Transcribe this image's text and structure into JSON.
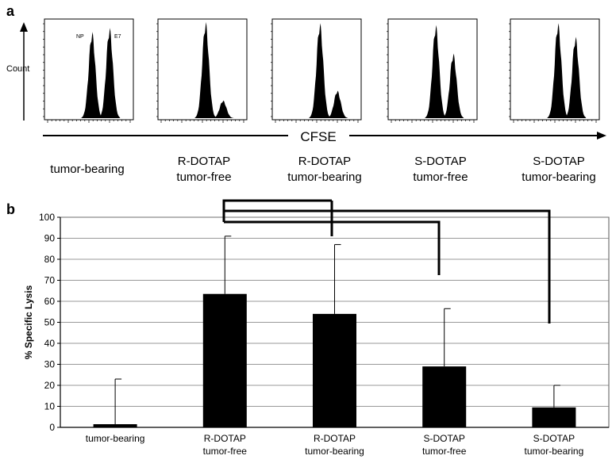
{
  "panel_a": {
    "letter": "a",
    "y_label": "Count",
    "x_label": "CFSE",
    "peak_labels": [
      "NP",
      "E7"
    ],
    "groups": [
      [
        "tumor-bearing"
      ],
      [
        "R-DOTAP",
        "tumor-free"
      ],
      [
        "R-DOTAP",
        "tumor-bearing"
      ],
      [
        "S-DOTAP",
        "tumor-free"
      ],
      [
        "S-DOTAP",
        "tumor-bearing"
      ]
    ]
  },
  "panel_b": {
    "letter": "b"
  },
  "chart_data": [
    {
      "type": "histogram",
      "description_key": "panel_a",
      "xlabel": "CFSE",
      "ylabel": "Count",
      "histograms": [
        {
          "group": "tumor-bearing",
          "peaks": [
            {
              "label": "NP",
              "relative_height": 0.88
            },
            {
              "label": "E7",
              "relative_height": 0.92
            }
          ]
        },
        {
          "group": "R-DOTAP tumor-free",
          "peaks": [
            {
              "relative_height": 0.98
            },
            {
              "relative_height": 0.18
            }
          ]
        },
        {
          "group": "R-DOTAP tumor-bearing",
          "peaks": [
            {
              "relative_height": 0.97
            },
            {
              "relative_height": 0.28
            }
          ]
        },
        {
          "group": "S-DOTAP tumor-free",
          "peaks": [
            {
              "relative_height": 0.95
            },
            {
              "relative_height": 0.66
            }
          ]
        },
        {
          "group": "S-DOTAP tumor-bearing",
          "peaks": [
            {
              "relative_height": 0.97
            },
            {
              "relative_height": 0.83
            }
          ]
        }
      ]
    },
    {
      "type": "bar",
      "categories": [
        [
          "tumor-bearing"
        ],
        [
          "R-DOTAP",
          "tumor-free"
        ],
        [
          "R-DOTAP",
          "tumor-bearing"
        ],
        [
          "S-DOTAP",
          "tumor-free"
        ],
        [
          "S-DOTAP",
          "tumor-bearing"
        ]
      ],
      "values": [
        1.5,
        63.5,
        54,
        29,
        9.5
      ],
      "error_upper": [
        23,
        91,
        87,
        56.5,
        20
      ],
      "ylabel": "% Specific Lysis",
      "ylim": [
        0,
        100
      ],
      "yticks": [
        "0",
        "10",
        "20",
        "30",
        "40",
        "50",
        "60",
        "70",
        "80",
        "90",
        "100"
      ],
      "grid": true,
      "bar_color": "#000000",
      "comparison_brackets": [
        {
          "from": 1,
          "to": 3
        },
        {
          "from": 2,
          "to": 4
        }
      ]
    }
  ]
}
